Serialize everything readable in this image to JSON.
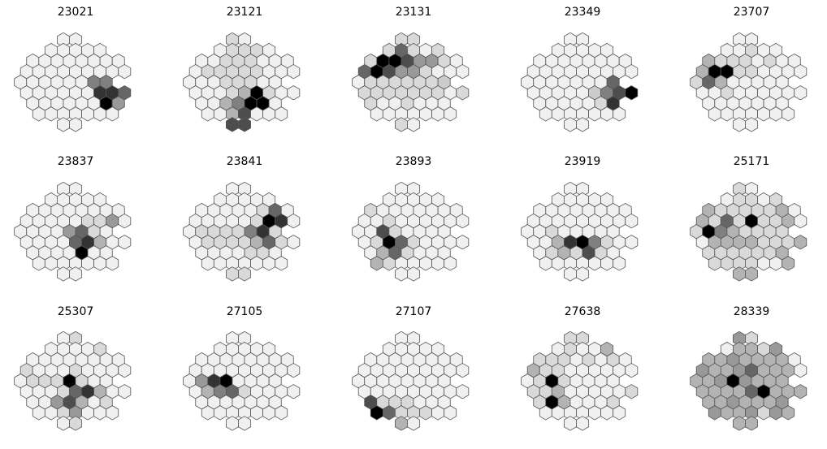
{
  "chart_data": [
    {
      "type": "heatmap",
      "title": "23021",
      "layout": "hexagonal",
      "value_range": [
        0,
        1
      ],
      "cells": [
        [
          0.06,
          0.06
        ],
        [
          0.06,
          0.06,
          0.06,
          0.06,
          0.06
        ],
        [
          0.06,
          0.06,
          0.06,
          0.06,
          0.06,
          0.06,
          0.06,
          0.06
        ],
        [
          0.06,
          0.06,
          0.06,
          0.06,
          0.06,
          0.06,
          0.06,
          0.06,
          0.06
        ],
        [
          0.06,
          0.06,
          0.06,
          0.06,
          0.06,
          0.06,
          0.5,
          0.5
        ],
        [
          0.06,
          0.06,
          0.06,
          0.06,
          0.06,
          0.06,
          0.8,
          0.8,
          0.6
        ],
        [
          0.06,
          0.06,
          0.06,
          0.06,
          0.06,
          0.06,
          1.0,
          0.4
        ],
        [
          0.06,
          0.06,
          0.06,
          0.06,
          0.06,
          0.06,
          0.06
        ],
        [
          0.06,
          0.06
        ]
      ]
    },
    {
      "type": "heatmap",
      "title": "23121",
      "layout": "hexagonal",
      "value_range": [
        0,
        1
      ],
      "cells": [
        [
          0.15,
          0.06
        ],
        [
          0.06,
          0.15,
          0.15,
          0.15,
          0.06
        ],
        [
          0.06,
          0.06,
          0.15,
          0.15,
          0.15,
          0.06,
          0.06,
          0.06
        ],
        [
          0.06,
          0.15,
          0.15,
          0.15,
          0.15,
          0.15,
          0.06,
          0.06,
          0.06
        ],
        [
          0.06,
          0.06,
          0.06,
          0.15,
          0.15,
          0.15,
          0.06,
          0.06
        ],
        [
          0.06,
          0.06,
          0.06,
          0.15,
          0.3,
          1.0,
          0.15,
          0.06,
          0.06
        ],
        [
          0.06,
          0.06,
          0.3,
          0.5,
          1.0,
          1.0,
          0.06
        ],
        [
          0.06,
          0.06,
          0.3,
          0.7,
          0.06,
          0.06,
          0.06
        ],
        [
          0.7,
          0.7
        ]
      ]
    },
    {
      "type": "heatmap",
      "title": "23131",
      "layout": "hexagonal",
      "value_range": [
        0,
        1
      ],
      "cells": [
        [
          0.15,
          0.15
        ],
        [
          0.15,
          0.6,
          0.15,
          0.06,
          0.15
        ],
        [
          0.15,
          1.0,
          1.0,
          0.7,
          0.4,
          0.4,
          0.15,
          0.06
        ],
        [
          0.6,
          1.0,
          0.7,
          0.4,
          0.4,
          0.15,
          0.06,
          0.06,
          0.06
        ],
        [
          0.06,
          0.15,
          0.15,
          0.15,
          0.15,
          0.15,
          0.15,
          0.2
        ],
        [
          0.15,
          0.15,
          0.15,
          0.15,
          0.15,
          0.15,
          0.15,
          0.06,
          0.15
        ],
        [
          0.15,
          0.06,
          0.06,
          0.15,
          0.06,
          0.06,
          0.06
        ],
        [
          0.06,
          0.06,
          0.06,
          0.06,
          0.06,
          0.06,
          0.06
        ],
        [
          0.15,
          0.06
        ]
      ]
    },
    {
      "type": "heatmap",
      "title": "23349",
      "layout": "hexagonal",
      "value_range": [
        0,
        1
      ],
      "cells": [
        [
          0.06,
          0.06
        ],
        [
          0.06,
          0.06,
          0.06,
          0.06,
          0.06
        ],
        [
          0.06,
          0.06,
          0.06,
          0.06,
          0.06,
          0.06,
          0.06,
          0.06
        ],
        [
          0.06,
          0.06,
          0.06,
          0.06,
          0.06,
          0.06,
          0.06,
          0.06,
          0.06
        ],
        [
          0.06,
          0.06,
          0.06,
          0.06,
          0.06,
          0.06,
          0.06,
          0.6
        ],
        [
          0.06,
          0.06,
          0.06,
          0.06,
          0.06,
          0.2,
          0.5,
          0.7,
          1.0
        ],
        [
          0.06,
          0.06,
          0.06,
          0.06,
          0.06,
          0.15,
          0.8
        ],
        [
          0.06,
          0.06,
          0.06,
          0.06,
          0.06,
          0.06,
          0.06
        ],
        [
          0.06,
          0.06
        ]
      ]
    },
    {
      "type": "heatmap",
      "title": "23707",
      "layout": "hexagonal",
      "value_range": [
        0,
        1
      ],
      "cells": [
        [
          0.06,
          0.06
        ],
        [
          0.06,
          0.06,
          0.15,
          0.06,
          0.06
        ],
        [
          0.3,
          0.15,
          0.15,
          0.15,
          0.06,
          0.15,
          0.06,
          0.06
        ],
        [
          0.3,
          1.0,
          1.0,
          0.15,
          0.15,
          0.06,
          0.06,
          0.06,
          0.06
        ],
        [
          0.15,
          0.6,
          0.3,
          0.06,
          0.06,
          0.06,
          0.06,
          0.06
        ],
        [
          0.06,
          0.06,
          0.15,
          0.06,
          0.06,
          0.06,
          0.06,
          0.06,
          0.06
        ],
        [
          0.06,
          0.06,
          0.06,
          0.06,
          0.06,
          0.06,
          0.06
        ],
        [
          0.06,
          0.06,
          0.06,
          0.06,
          0.06,
          0.06,
          0.06
        ],
        [
          0.06,
          0.06
        ]
      ]
    },
    {
      "type": "heatmap",
      "title": "23837",
      "layout": "hexagonal",
      "value_range": [
        0,
        1
      ],
      "cells": [
        [
          0.06,
          0.06
        ],
        [
          0.06,
          0.06,
          0.06,
          0.06,
          0.06
        ],
        [
          0.06,
          0.06,
          0.06,
          0.06,
          0.06,
          0.06,
          0.06,
          0.06
        ],
        [
          0.06,
          0.06,
          0.06,
          0.06,
          0.06,
          0.15,
          0.15,
          0.4,
          0.06
        ],
        [
          0.06,
          0.06,
          0.06,
          0.06,
          0.4,
          0.6,
          0.15,
          0.06
        ],
        [
          0.06,
          0.06,
          0.06,
          0.06,
          0.6,
          0.8,
          0.3,
          0.06,
          0.06
        ],
        [
          0.06,
          0.06,
          0.06,
          0.06,
          1.0,
          0.06,
          0.06
        ],
        [
          0.06,
          0.06,
          0.06,
          0.06,
          0.06,
          0.06,
          0.06
        ],
        [
          0.06,
          0.06
        ]
      ]
    },
    {
      "type": "heatmap",
      "title": "23841",
      "layout": "hexagonal",
      "value_range": [
        0,
        1
      ],
      "cells": [
        [
          0.06,
          0.06
        ],
        [
          0.06,
          0.06,
          0.06,
          0.06,
          0.06
        ],
        [
          0.06,
          0.06,
          0.06,
          0.06,
          0.06,
          0.15,
          0.6,
          0.06
        ],
        [
          0.06,
          0.06,
          0.06,
          0.06,
          0.06,
          0.15,
          1.0,
          0.8,
          0.06
        ],
        [
          0.06,
          0.15,
          0.15,
          0.15,
          0.15,
          0.5,
          0.8,
          0.15
        ],
        [
          0.06,
          0.15,
          0.15,
          0.15,
          0.15,
          0.3,
          0.6,
          0.15,
          0.06
        ],
        [
          0.06,
          0.06,
          0.06,
          0.06,
          0.15,
          0.15,
          0.06
        ],
        [
          0.06,
          0.06,
          0.06,
          0.06,
          0.06,
          0.06,
          0.06
        ],
        [
          0.15,
          0.15
        ]
      ]
    },
    {
      "type": "heatmap",
      "title": "23893",
      "layout": "hexagonal",
      "value_range": [
        0,
        1
      ],
      "cells": [
        [
          0.06,
          0.06
        ],
        [
          0.06,
          0.06,
          0.06,
          0.06,
          0.06
        ],
        [
          0.15,
          0.06,
          0.06,
          0.06,
          0.06,
          0.06,
          0.06,
          0.06
        ],
        [
          0.06,
          0.06,
          0.15,
          0.06,
          0.06,
          0.06,
          0.06,
          0.06,
          0.06
        ],
        [
          0.06,
          0.06,
          0.7,
          0.15,
          0.06,
          0.06,
          0.06,
          0.06
        ],
        [
          0.06,
          0.15,
          1.0,
          0.6,
          0.15,
          0.06,
          0.06,
          0.06,
          0.06
        ],
        [
          0.06,
          0.3,
          0.6,
          0.15,
          0.06,
          0.06,
          0.06
        ],
        [
          0.3,
          0.15,
          0.06,
          0.06,
          0.06,
          0.06,
          0.06
        ],
        [
          0.06,
          0.06
        ]
      ]
    },
    {
      "type": "heatmap",
      "title": "23919",
      "layout": "hexagonal",
      "value_range": [
        0,
        1
      ],
      "cells": [
        [
          0.06,
          0.06
        ],
        [
          0.06,
          0.06,
          0.06,
          0.06,
          0.06
        ],
        [
          0.06,
          0.06,
          0.06,
          0.06,
          0.06,
          0.06,
          0.06,
          0.06
        ],
        [
          0.06,
          0.06,
          0.06,
          0.06,
          0.06,
          0.06,
          0.06,
          0.06,
          0.06
        ],
        [
          0.06,
          0.06,
          0.15,
          0.06,
          0.06,
          0.06,
          0.06,
          0.06
        ],
        [
          0.06,
          0.06,
          0.3,
          0.8,
          1.0,
          0.5,
          0.15,
          0.06,
          0.06
        ],
        [
          0.06,
          0.15,
          0.3,
          0.15,
          0.7,
          0.15,
          0.06
        ],
        [
          0.06,
          0.06,
          0.06,
          0.06,
          0.06,
          0.06,
          0.06
        ],
        [
          0.06,
          0.06
        ]
      ]
    },
    {
      "type": "heatmap",
      "title": "25171",
      "layout": "hexagonal",
      "value_range": [
        0,
        1
      ],
      "cells": [
        [
          0.15,
          0.06
        ],
        [
          0.06,
          0.15,
          0.15,
          0.06,
          0.15
        ],
        [
          0.3,
          0.15,
          0.15,
          0.15,
          0.15,
          0.15,
          0.3,
          0.06
        ],
        [
          0.3,
          0.15,
          0.6,
          0.15,
          1.0,
          0.15,
          0.15,
          0.3,
          0.06
        ],
        [
          0.15,
          1.0,
          0.5,
          0.3,
          0.15,
          0.15,
          0.15,
          0.15
        ],
        [
          0.06,
          0.3,
          0.3,
          0.3,
          0.3,
          0.15,
          0.15,
          0.15,
          0.3
        ],
        [
          0.15,
          0.15,
          0.15,
          0.15,
          0.15,
          0.15,
          0.3
        ],
        [
          0.15,
          0.15,
          0.15,
          0.15,
          0.06,
          0.06,
          0.3
        ],
        [
          0.3,
          0.3
        ]
      ]
    },
    {
      "type": "heatmap",
      "title": "25307",
      "layout": "hexagonal",
      "value_range": [
        0,
        1
      ],
      "cells": [
        [
          0.06,
          0.15
        ],
        [
          0.06,
          0.06,
          0.06,
          0.06,
          0.15
        ],
        [
          0.06,
          0.06,
          0.06,
          0.06,
          0.06,
          0.06,
          0.06,
          0.06
        ],
        [
          0.15,
          0.06,
          0.06,
          0.06,
          0.15,
          0.06,
          0.06,
          0.06,
          0.06
        ],
        [
          0.06,
          0.15,
          0.15,
          0.15,
          1.0,
          0.15,
          0.06,
          0.06
        ],
        [
          0.06,
          0.06,
          0.06,
          0.15,
          0.6,
          0.8,
          0.3,
          0.06,
          0.06
        ],
        [
          0.06,
          0.06,
          0.4,
          0.7,
          0.3,
          0.06,
          0.15
        ],
        [
          0.06,
          0.06,
          0.15,
          0.4,
          0.06,
          0.06,
          0.06
        ],
        [
          0.06,
          0.15
        ]
      ]
    },
    {
      "type": "heatmap",
      "title": "27105",
      "layout": "hexagonal",
      "value_range": [
        0,
        1
      ],
      "cells": [
        [
          0.06,
          0.06
        ],
        [
          0.06,
          0.06,
          0.06,
          0.06,
          0.06
        ],
        [
          0.06,
          0.06,
          0.06,
          0.06,
          0.06,
          0.06,
          0.06,
          0.06
        ],
        [
          0.06,
          0.06,
          0.06,
          0.06,
          0.06,
          0.06,
          0.06,
          0.06,
          0.06
        ],
        [
          0.06,
          0.4,
          0.8,
          1.0,
          0.06,
          0.06,
          0.06,
          0.06
        ],
        [
          0.06,
          0.3,
          0.5,
          0.6,
          0.15,
          0.06,
          0.06,
          0.06,
          0.06
        ],
        [
          0.06,
          0.06,
          0.06,
          0.06,
          0.06,
          0.06,
          0.06
        ],
        [
          0.06,
          0.06,
          0.06,
          0.06,
          0.06,
          0.06,
          0.06
        ],
        [
          0.06,
          0.06
        ]
      ]
    },
    {
      "type": "heatmap",
      "title": "27107",
      "layout": "hexagonal",
      "value_range": [
        0,
        1
      ],
      "cells": [
        [
          0.06,
          0.06
        ],
        [
          0.06,
          0.06,
          0.06,
          0.06,
          0.06
        ],
        [
          0.06,
          0.06,
          0.06,
          0.06,
          0.06,
          0.06,
          0.06,
          0.06
        ],
        [
          0.06,
          0.06,
          0.06,
          0.06,
          0.06,
          0.06,
          0.06,
          0.06,
          0.06
        ],
        [
          0.06,
          0.06,
          0.06,
          0.06,
          0.06,
          0.06,
          0.06,
          0.06
        ],
        [
          0.06,
          0.06,
          0.06,
          0.06,
          0.06,
          0.06,
          0.06,
          0.06,
          0.06
        ],
        [
          0.7,
          0.15,
          0.15,
          0.15,
          0.06,
          0.06,
          0.06
        ],
        [
          1.0,
          0.6,
          0.15,
          0.15,
          0.15,
          0.06,
          0.06
        ],
        [
          0.3,
          0.06
        ]
      ]
    },
    {
      "type": "heatmap",
      "title": "27638",
      "layout": "hexagonal",
      "value_range": [
        0,
        1
      ],
      "cells": [
        [
          0.15,
          0.15
        ],
        [
          0.06,
          0.15,
          0.06,
          0.06,
          0.3
        ],
        [
          0.15,
          0.15,
          0.15,
          0.06,
          0.15,
          0.06,
          0.15,
          0.06
        ],
        [
          0.3,
          0.15,
          0.15,
          0.06,
          0.06,
          0.06,
          0.06,
          0.06,
          0.06
        ],
        [
          0.06,
          0.15,
          1.0,
          0.15,
          0.06,
          0.06,
          0.06,
          0.06
        ],
        [
          0.15,
          0.15,
          0.3,
          0.06,
          0.06,
          0.06,
          0.06,
          0.06,
          0.15
        ],
        [
          0.15,
          1.0,
          0.3,
          0.06,
          0.06,
          0.06,
          0.15
        ],
        [
          0.06,
          0.06,
          0.06,
          0.06,
          0.06,
          0.06,
          0.06
        ],
        [
          0.06,
          0.06
        ]
      ]
    },
    {
      "type": "heatmap",
      "title": "28339",
      "layout": "hexagonal",
      "value_range": [
        0,
        1
      ],
      "cells": [
        [
          0.4,
          0.15
        ],
        [
          0.06,
          0.3,
          0.3,
          0.15,
          0.4
        ],
        [
          0.3,
          0.3,
          0.4,
          0.3,
          0.3,
          0.3,
          0.3,
          0.06
        ],
        [
          0.4,
          0.3,
          0.3,
          0.4,
          0.6,
          0.3,
          0.3,
          0.3,
          0.06
        ],
        [
          0.3,
          0.3,
          0.4,
          1.0,
          0.4,
          0.3,
          0.3,
          0.3
        ],
        [
          0.3,
          0.3,
          0.3,
          0.3,
          0.6,
          1.0,
          0.3,
          0.3,
          0.3
        ],
        [
          0.3,
          0.3,
          0.4,
          0.3,
          0.3,
          0.3,
          0.4
        ],
        [
          0.4,
          0.3,
          0.3,
          0.4,
          0.15,
          0.4,
          0.3
        ],
        [
          0.3,
          0.3
        ]
      ]
    }
  ]
}
